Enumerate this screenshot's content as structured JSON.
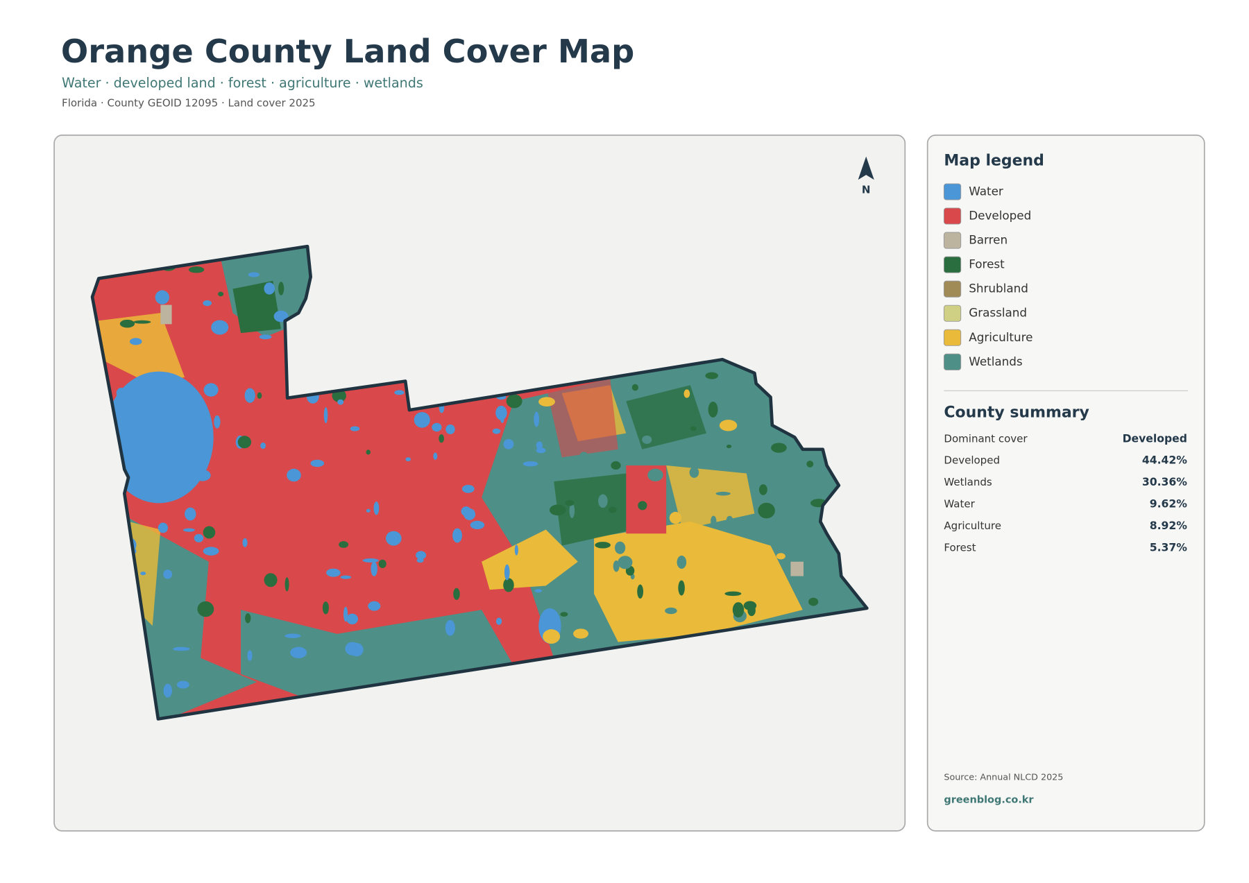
{
  "header": {
    "title": "Orange County Land Cover Map",
    "subtitle": "Water · developed land · forest · agriculture · wetlands",
    "meta": "Florida · County GEOID 12095 · Land cover 2025"
  },
  "map": {
    "north_label": "N"
  },
  "legend": {
    "title": "Map legend",
    "items": [
      {
        "label": "Water",
        "color": "#4a96d6"
      },
      {
        "label": "Developed",
        "color": "#d9484a"
      },
      {
        "label": "Barren",
        "color": "#bdb4a0"
      },
      {
        "label": "Forest",
        "color": "#2a6e3f"
      },
      {
        "label": "Shrubland",
        "color": "#a08a55"
      },
      {
        "label": "Grassland",
        "color": "#cfd083"
      },
      {
        "label": "Agriculture",
        "color": "#eaba3a"
      },
      {
        "label": "Wetlands",
        "color": "#4e8f87"
      }
    ]
  },
  "summary": {
    "title": "County summary",
    "rows": [
      {
        "label": "Dominant cover",
        "value": "Developed"
      },
      {
        "label": "Developed",
        "value": "44.42%"
      },
      {
        "label": "Wetlands",
        "value": "30.36%"
      },
      {
        "label": "Water",
        "value": "9.62%"
      },
      {
        "label": "Agriculture",
        "value": "8.92%"
      },
      {
        "label": "Forest",
        "value": "5.37%"
      }
    ]
  },
  "footer": {
    "source": "Source: Annual NLCD 2025",
    "site": "greenblog.co.kr"
  }
}
